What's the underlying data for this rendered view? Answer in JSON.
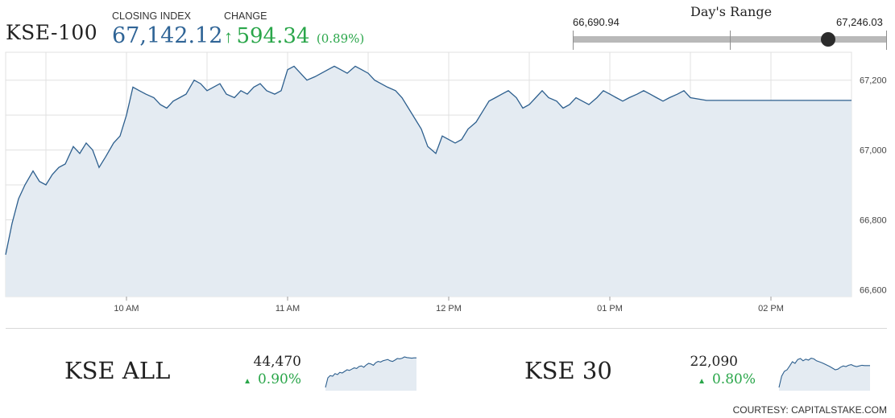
{
  "header": {
    "index_name": "KSE-100",
    "closing_label": "CLOSING INDEX",
    "closing_value": "67,142.12",
    "change_label": "CHANGE",
    "change_arrow": "↑",
    "change_value": "594.34",
    "change_pct": "(0.89%)",
    "range_title": "Day's Range",
    "range_low": "66,690.94",
    "range_high": "67,246.03"
  },
  "day_range": {
    "low": 66690.94,
    "high": 67246.03,
    "current": 67142.12,
    "midpoint": 66968.49
  },
  "colors": {
    "line": "#2d5f8e",
    "fill": "#e4ebf2",
    "up": "#2aa64a",
    "value_blue": "#2f6496",
    "grid": "#e0e0e0"
  },
  "chart_data": {
    "type": "area",
    "title": "",
    "xlabel": "",
    "ylabel": "",
    "x_ticks": [
      "10 AM",
      "11 AM",
      "12 PM",
      "01 PM",
      "02 PM"
    ],
    "y_ticks": [
      66600,
      66800,
      67000,
      67200
    ],
    "y_tick_labels": [
      "66,600",
      "66,800",
      "67,000",
      "67,200"
    ],
    "xlim": [
      9.25,
      14.5
    ],
    "ylim": [
      66580,
      67280
    ],
    "grid": true,
    "series": [
      {
        "x": [
          9.25,
          9.29,
          9.33,
          9.37,
          9.42,
          9.46,
          9.5,
          9.54,
          9.58,
          9.62,
          9.67,
          9.71,
          9.75,
          9.79,
          9.83,
          9.87,
          9.92,
          9.96,
          10.0,
          10.04,
          10.08,
          10.12,
          10.17,
          10.21,
          10.25,
          10.29,
          10.33,
          10.37,
          10.42,
          10.46,
          10.5,
          10.54,
          10.58,
          10.62,
          10.67,
          10.71,
          10.75,
          10.79,
          10.83,
          10.87,
          10.92,
          10.96,
          11.0,
          11.04,
          11.08,
          11.12,
          11.17,
          11.21,
          11.25,
          11.29,
          11.33,
          11.37,
          11.42,
          11.46,
          11.5,
          11.54,
          11.58,
          11.62,
          11.67,
          11.71,
          11.75,
          11.79,
          11.83,
          11.87,
          11.92,
          11.96,
          12.0,
          12.04,
          12.08,
          12.12,
          12.17,
          12.21,
          12.25,
          12.29,
          12.33,
          12.37,
          12.42,
          12.46,
          12.5,
          12.54,
          12.58,
          12.62,
          12.67,
          12.71,
          12.75,
          12.79,
          12.83,
          12.87,
          12.92,
          12.96,
          13.0,
          13.04,
          13.08,
          13.12,
          13.17,
          13.21,
          13.25,
          13.29,
          13.33,
          13.37,
          13.42,
          13.46,
          13.5,
          13.6,
          13.75,
          14.0,
          14.25,
          14.5
        ],
        "y": [
          66700,
          66790,
          66860,
          66900,
          66940,
          66910,
          66900,
          66930,
          66950,
          66960,
          67010,
          66990,
          67020,
          67000,
          66950,
          66980,
          67020,
          67040,
          67100,
          67180,
          67170,
          67160,
          67150,
          67130,
          67120,
          67140,
          67150,
          67160,
          67200,
          67190,
          67170,
          67180,
          67190,
          67160,
          67150,
          67170,
          67160,
          67180,
          67190,
          67170,
          67160,
          67170,
          67230,
          67240,
          67220,
          67200,
          67210,
          67220,
          67230,
          67240,
          67230,
          67220,
          67240,
          67230,
          67220,
          67200,
          67190,
          67180,
          67170,
          67150,
          67120,
          67090,
          67060,
          67010,
          66990,
          67040,
          67030,
          67020,
          67030,
          67060,
          67080,
          67110,
          67140,
          67150,
          67160,
          67170,
          67150,
          67120,
          67130,
          67150,
          67170,
          67150,
          67140,
          67120,
          67130,
          67150,
          67140,
          67130,
          67150,
          67170,
          67160,
          67150,
          67140,
          67150,
          67160,
          67170,
          67160,
          67150,
          67140,
          67150,
          67160,
          67170,
          67150,
          67142,
          67142,
          67142,
          67142,
          67142
        ]
      }
    ]
  },
  "mini_charts": [
    {
      "name": "KSE ALL",
      "value": "44,470",
      "arrow": "▲",
      "change": "0.90%",
      "spark": [
        0.05,
        0.35,
        0.42,
        0.4,
        0.48,
        0.45,
        0.52,
        0.5,
        0.55,
        0.6,
        0.58,
        0.62,
        0.66,
        0.64,
        0.7,
        0.72,
        0.68,
        0.75,
        0.8,
        0.78,
        0.74,
        0.82,
        0.86,
        0.84,
        0.88,
        0.9,
        0.92,
        0.88,
        0.86,
        0.9,
        0.95,
        0.94,
        0.96,
        1.0,
        0.98,
        0.97,
        0.96,
        0.97,
        0.97
      ]
    },
    {
      "name": "KSE 30",
      "value": "22,090",
      "arrow": "▲",
      "change": "0.80%",
      "spark": [
        0.05,
        0.4,
        0.55,
        0.6,
        0.72,
        0.85,
        0.8,
        0.92,
        0.95,
        0.88,
        0.93,
        0.9,
        0.96,
        0.94,
        0.88,
        0.85,
        0.82,
        0.78,
        0.74,
        0.7,
        0.65,
        0.6,
        0.62,
        0.68,
        0.72,
        0.7,
        0.74,
        0.76,
        0.72,
        0.7,
        0.72,
        0.74,
        0.73,
        0.73,
        0.73
      ]
    }
  ],
  "footer": {
    "courtesy": "COURTESY: CAPITALSTAKE.COM"
  }
}
